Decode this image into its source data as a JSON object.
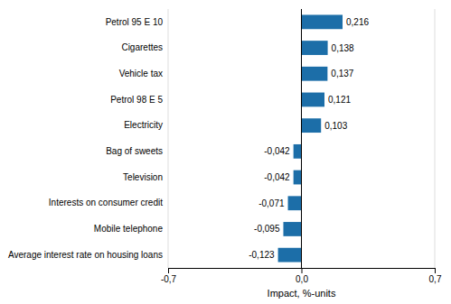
{
  "chart_data": {
    "type": "bar",
    "orientation": "horizontal",
    "categories": [
      "Average interest rate on housing loans",
      "Mobile telephone",
      "Interests on consumer credit",
      "Television",
      "Bag of sweets",
      "Electricity",
      "Petrol 98 E 5",
      "Vehicle tax",
      "Cigarettes",
      "Petrol 95 E 10"
    ],
    "values": [
      -0.123,
      -0.095,
      -0.071,
      -0.042,
      -0.042,
      0.103,
      0.121,
      0.137,
      0.138,
      0.216
    ],
    "value_labels": [
      "-0,123",
      "-0,095",
      "-0,071",
      "-0,042",
      "-0,042",
      "0,103",
      "0,121",
      "0,137",
      "0,138",
      "0,216"
    ],
    "data_labels": true,
    "color": "#1c6ea8",
    "xlim": [
      -0.7,
      0.7
    ],
    "xticks": [
      {
        "value": -0.7,
        "label": "-0,7"
      },
      {
        "value": 0.0,
        "label": "0,0"
      },
      {
        "value": 0.7,
        "label": "0,7"
      }
    ],
    "xlabel": "Impact, %-units",
    "grid": true
  }
}
